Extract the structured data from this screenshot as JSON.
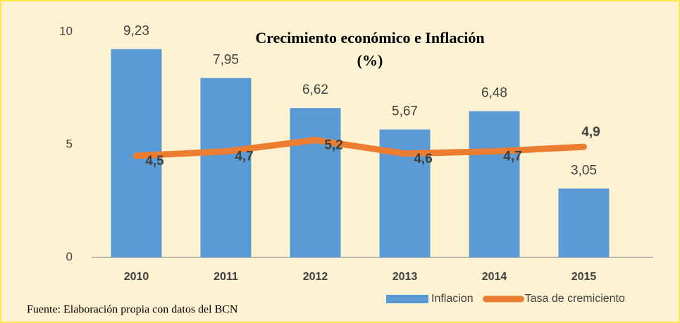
{
  "chart_data": {
    "type": "bar",
    "title": "Crecimiento económico e Inflación",
    "subtitle": "(%)",
    "source": "Fuente: Elaboración propia con datos del BCN",
    "categories": [
      "2010",
      "2011",
      "2012",
      "2013",
      "2014",
      "2015"
    ],
    "series": [
      {
        "name": "Inflacion",
        "type": "bar",
        "color": "#5b9bd5",
        "values": [
          9.23,
          7.95,
          6.62,
          5.67,
          6.48,
          3.05
        ],
        "value_labels": [
          "9,23",
          "7,95",
          "6,62",
          "5,67",
          "6,48",
          "3,05"
        ]
      },
      {
        "name": "Tasa de cremiciento",
        "type": "line",
        "color": "#ed7d31",
        "values": [
          4.5,
          4.7,
          5.2,
          4.6,
          4.7,
          4.9
        ],
        "value_labels": [
          "4,5",
          "4,7",
          "5,2",
          "4,6",
          "4,7",
          "4,9"
        ]
      }
    ],
    "ylim": [
      0,
      10
    ],
    "yticks": [
      0,
      5,
      10
    ],
    "grid": false,
    "legend": "bottom-right"
  }
}
